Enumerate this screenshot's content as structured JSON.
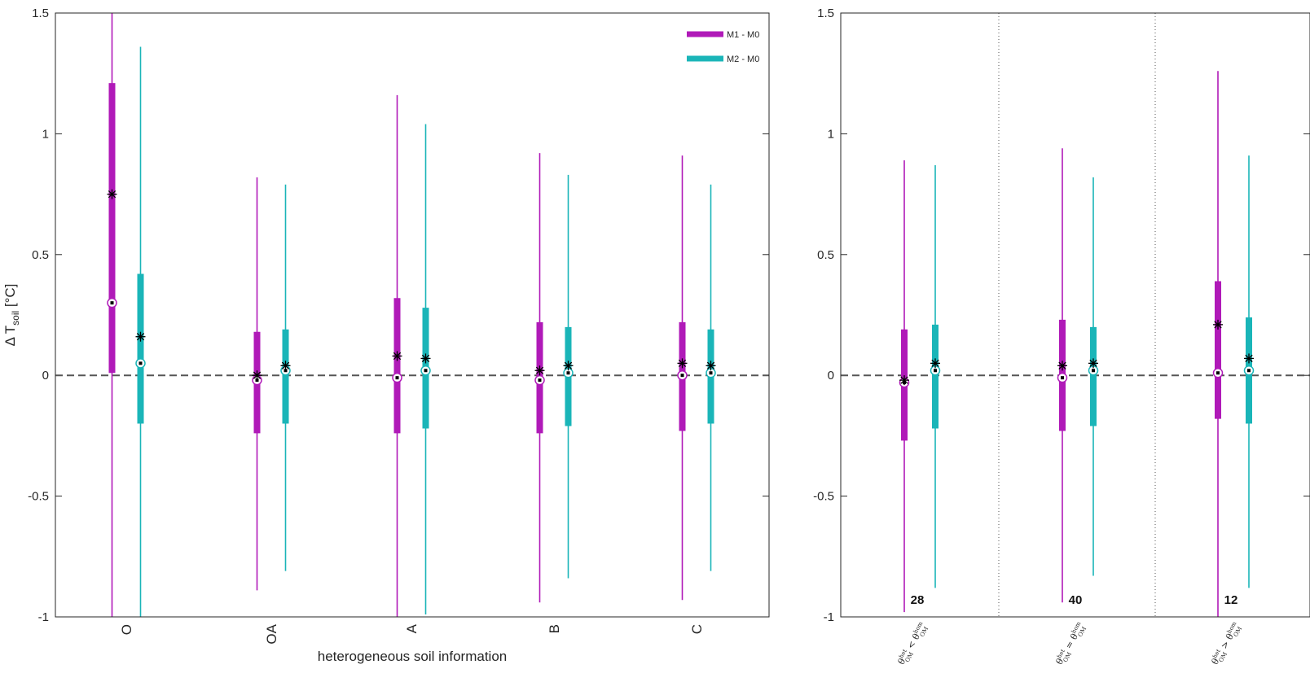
{
  "colors": {
    "m1": "#b01ab8",
    "m2": "#1ab5b8",
    "axis": "#262626",
    "zero": "#555555"
  },
  "chart_data": [
    {
      "type": "boxplot",
      "xlabel": "heterogeneous soil information",
      "ylabel_base": "Δ T",
      "ylabel_sub": "soil",
      "ylabel_unit": " [°C]",
      "ylim": [
        -1,
        1.5
      ],
      "yticks": [
        -1,
        -0.5,
        0,
        0.5,
        1,
        1.5
      ],
      "ytick_labels": [
        "-1",
        "-0.5",
        "0",
        "0.5",
        "1",
        "1.5"
      ],
      "zero_line": 0,
      "legend": {
        "placement": "top-right",
        "entries": [
          "M1 - M0",
          "M2 - M0"
        ]
      },
      "categories": [
        "O",
        "OA",
        "A",
        "B",
        "C"
      ],
      "series": [
        {
          "name": "M1 - M0",
          "whisker_low": [
            -1,
            -0.89,
            -1,
            -0.94,
            -0.93
          ],
          "q1": [
            0.01,
            -0.24,
            -0.24,
            -0.24,
            -0.23
          ],
          "median": [
            0.3,
            -0.02,
            -0.01,
            -0.02,
            0.0
          ],
          "q3": [
            1.21,
            0.18,
            0.32,
            0.22,
            0.22
          ],
          "whisker_high": [
            1.5,
            0.82,
            1.16,
            0.92,
            0.91
          ],
          "mean": [
            0.75,
            0.0,
            0.08,
            0.02,
            0.05
          ]
        },
        {
          "name": "M2 - M0",
          "whisker_low": [
            -1,
            -0.81,
            -0.99,
            -0.84,
            -0.81
          ],
          "q1": [
            -0.2,
            -0.2,
            -0.22,
            -0.21,
            -0.2
          ],
          "median": [
            0.05,
            0.02,
            0.02,
            0.01,
            0.01
          ],
          "q3": [
            0.42,
            0.19,
            0.28,
            0.2,
            0.19
          ],
          "whisker_high": [
            1.36,
            0.79,
            1.04,
            0.83,
            0.79
          ],
          "mean": [
            0.16,
            0.04,
            0.07,
            0.04,
            0.04
          ]
        }
      ]
    },
    {
      "type": "boxplot",
      "ylim": [
        -1,
        1.5
      ],
      "yticks": [
        -1,
        -0.5,
        0,
        0.5,
        1,
        1.5
      ],
      "ytick_labels": [
        "-1",
        "-0.5",
        "0",
        "0.5",
        "1",
        "1.5"
      ],
      "zero_line": 0,
      "categories": [
        "θ_OM^het < θ_OM^hom",
        "θ_OM^het = θ_OM^hom",
        "θ_OM^het > θ_OM^hom"
      ],
      "category_relations": [
        "<",
        "=",
        ">"
      ],
      "counts": [
        "28",
        "40",
        "12"
      ],
      "series": [
        {
          "name": "M1 - M0",
          "whisker_low": [
            -0.98,
            -0.94,
            -1
          ],
          "q1": [
            -0.27,
            -0.23,
            -0.18
          ],
          "median": [
            -0.03,
            -0.01,
            0.01
          ],
          "q3": [
            0.19,
            0.23,
            0.39
          ],
          "whisker_high": [
            0.89,
            0.94,
            1.26
          ],
          "mean": [
            -0.02,
            0.04,
            0.21
          ]
        },
        {
          "name": "M2 - M0",
          "whisker_low": [
            -0.88,
            -0.83,
            -0.88
          ],
          "q1": [
            -0.22,
            -0.21,
            -0.2
          ],
          "median": [
            0.02,
            0.02,
            0.02
          ],
          "q3": [
            0.21,
            0.2,
            0.24
          ],
          "whisker_high": [
            0.87,
            0.82,
            0.91
          ],
          "mean": [
            0.05,
            0.05,
            0.07
          ]
        }
      ]
    }
  ]
}
